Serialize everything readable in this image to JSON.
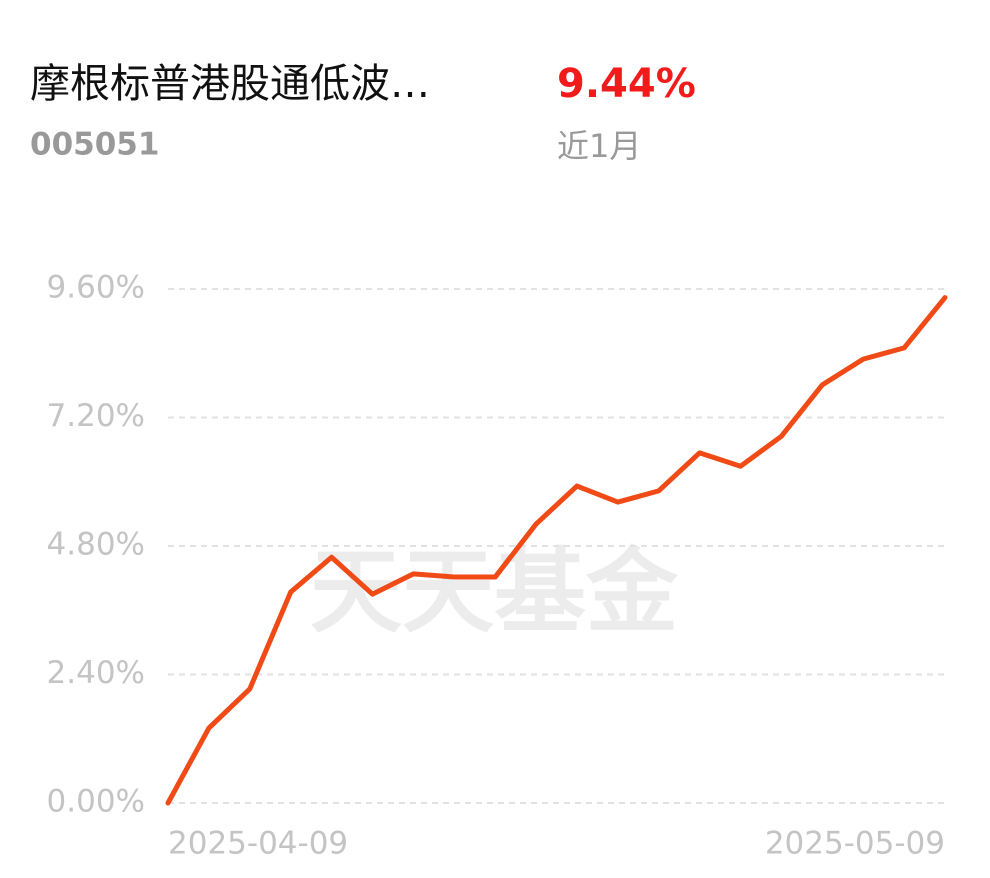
{
  "header": {
    "fund_name": "摩根标普港股通低波…",
    "fund_code": "005051",
    "return": "9.44%",
    "period": "近1月"
  },
  "chart_data": {
    "type": "line",
    "watermark": "天天基金",
    "categories": [
      "2025-04-09",
      null,
      null,
      null,
      null,
      null,
      null,
      null,
      null,
      null,
      null,
      null,
      null,
      null,
      null,
      null,
      null,
      null,
      null,
      "2025-05-09"
    ],
    "series": [
      {
        "name": "近1月",
        "color": "#f04b17",
        "values": [
          0,
          1.4,
          2.13,
          3.94,
          4.59,
          3.9,
          4.28,
          4.22,
          4.22,
          5.21,
          5.92,
          5.62,
          5.83,
          6.54,
          6.29,
          6.85,
          7.81,
          8.29,
          8.5,
          9.44
        ]
      }
    ],
    "ylim": [
      0,
      9.6
    ],
    "yticks": [
      {
        "value": 0,
        "label": "0.00%"
      },
      {
        "value": 2.4,
        "label": "2.40%"
      },
      {
        "value": 4.8,
        "label": "4.80%"
      },
      {
        "value": 7.2,
        "label": "7.20%"
      },
      {
        "value": 9.6,
        "label": "9.60%"
      }
    ],
    "grid": true
  }
}
